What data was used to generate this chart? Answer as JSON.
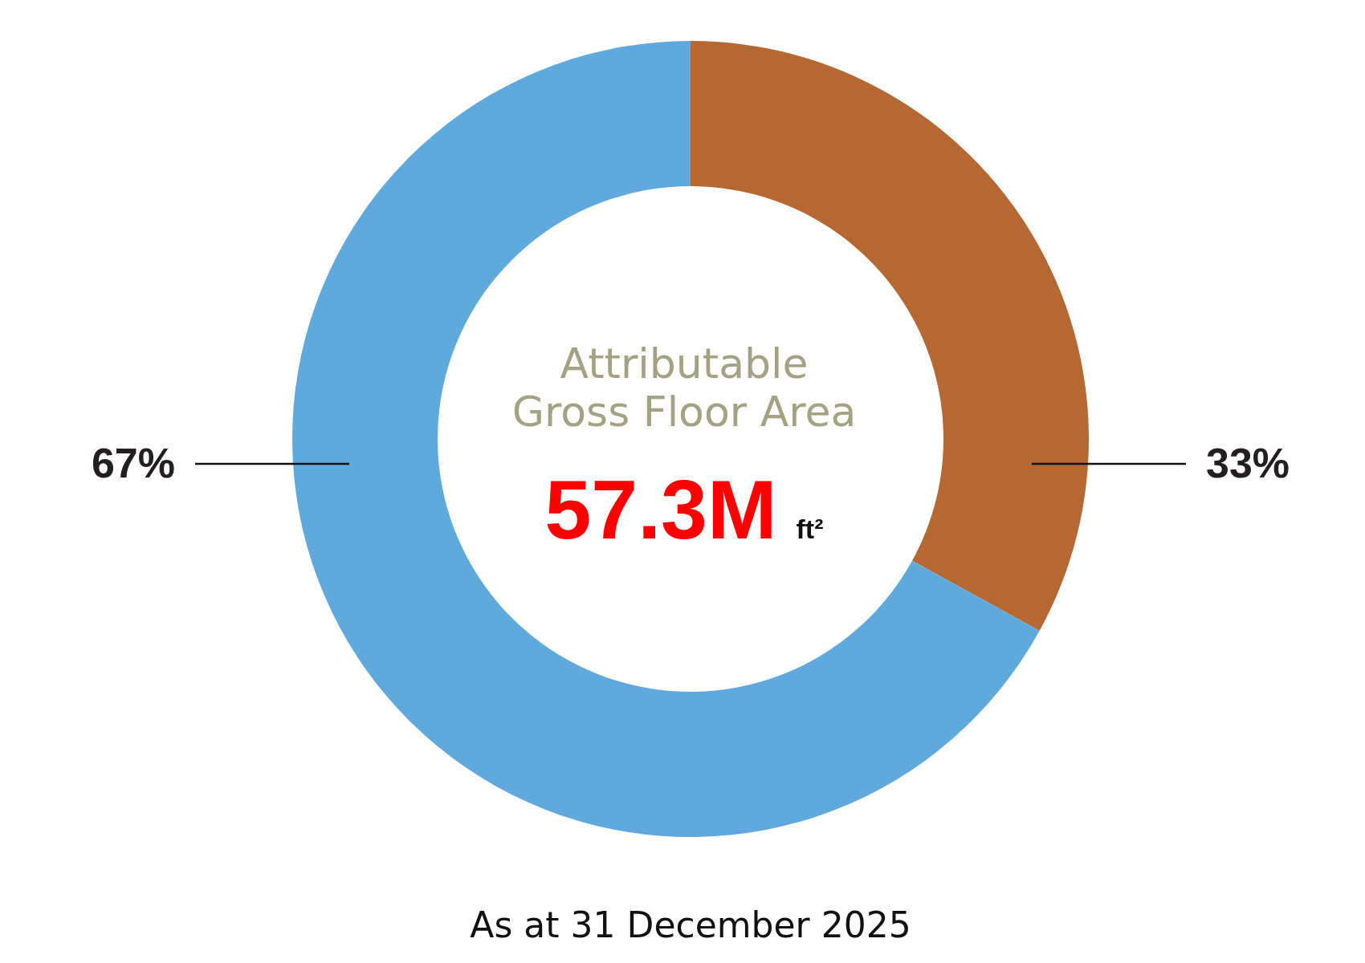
{
  "chart_data": {
    "type": "donut",
    "title": "Attributable Gross Floor Area",
    "subtitle": "57.3M ft²",
    "categories": [
      null,
      null
    ],
    "values": [
      33,
      67
    ],
    "colors": [
      "#b56832",
      "#5fa9dc"
    ],
    "value_labels": [
      "33%",
      "67%"
    ],
    "annotations": [
      "As at 31 December 2025"
    ]
  }
}
